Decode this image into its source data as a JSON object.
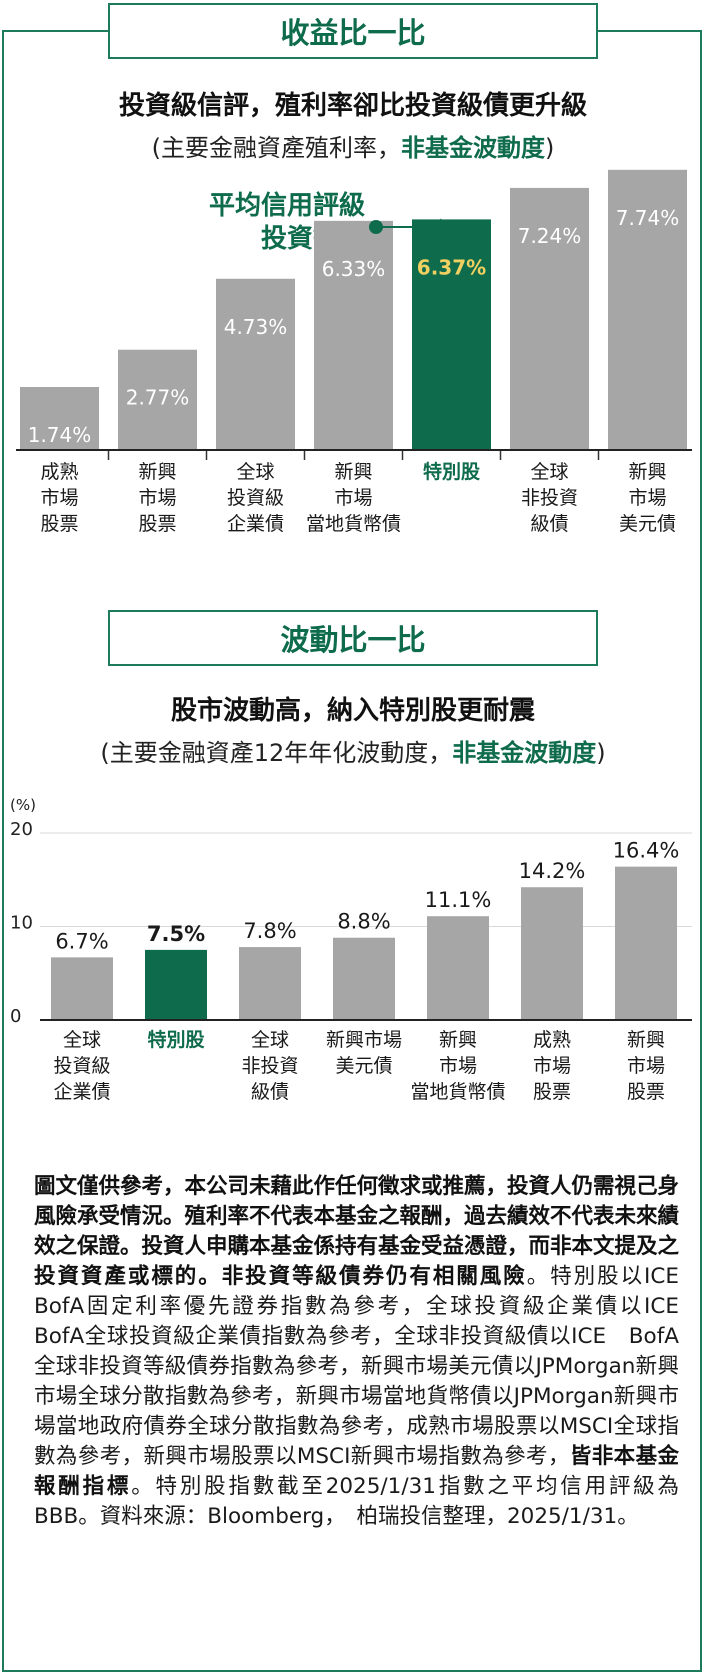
{
  "section1": {
    "header": "收益比一比",
    "headline": "投資級信評，殖利率卻比投資級債更升級",
    "subline_prefix": "(主要金融資產殖利率，",
    "subline_highlight": "非基金波動度",
    "subline_suffix": ")",
    "callout_line1": "平均信用評級",
    "callout_line2": "投資等級"
  },
  "section2": {
    "header": "波動比一比",
    "headline": "股市波動高，納入特別股更耐震",
    "subline_prefix": "(主要金融資產12年年化波動度，",
    "subline_highlight": "非基金波動度",
    "subline_suffix": ")"
  },
  "colors": {
    "accent": "#0e6b4c",
    "bar_gray": "#a6a6a6",
    "bar_highlight": "#0e6b4c",
    "highlight_value_text": "#f0d060"
  },
  "chart_data": [
    {
      "type": "bar",
      "title": "投資級信評，殖利率卻比投資級債更升級",
      "categories": [
        [
          "成熟",
          "市場",
          "股票"
        ],
        [
          "新興",
          "市場",
          "股票"
        ],
        [
          "全球",
          "投資級",
          "企業債"
        ],
        [
          "新興",
          "市場",
          "當地貨幣債"
        ],
        [
          "特別股"
        ],
        [
          "全球",
          "非投資",
          "級債"
        ],
        [
          "新興",
          "市場",
          "美元債"
        ]
      ],
      "values": [
        1.74,
        2.77,
        4.73,
        6.33,
        6.37,
        7.24,
        7.74
      ],
      "value_labels": [
        "1.74%",
        "2.77%",
        "4.73%",
        "6.33%",
        "6.37%",
        "7.24%",
        "7.74%"
      ],
      "highlight_index": 4,
      "ylim": [
        0,
        8.5
      ]
    },
    {
      "type": "bar",
      "title": "股市波動高，納入特別股更耐震",
      "unit_label": "(%)",
      "categories": [
        [
          "全球",
          "投資級",
          "企業債"
        ],
        [
          "特別股"
        ],
        [
          "全球",
          "非投資",
          "級債"
        ],
        [
          "新興市場",
          "美元債"
        ],
        [
          "新興",
          "市場",
          "當地貨幣債"
        ],
        [
          "成熟",
          "市場",
          "股票"
        ],
        [
          "新興",
          "市場",
          "股票"
        ]
      ],
      "values": [
        6.7,
        7.5,
        7.8,
        8.8,
        11.1,
        14.2,
        16.4
      ],
      "value_labels": [
        "6.7%",
        "7.5%",
        "7.8%",
        "8.8%",
        "11.1%",
        "14.2%",
        "16.4%"
      ],
      "highlight_index": 1,
      "yticks": [
        "0",
        "10",
        "20"
      ],
      "ylim": [
        0,
        20
      ],
      "grid": true
    }
  ],
  "disclaimer": {
    "bold1": "圖文僅供參考，本公司未藉此作任何徵求或推薦，投資人仍需視己身風險承受情況。殖利率不代表本基金之報酬，過去績效不代表未來績效之保證。投資人申購本基金係持有基金受益憑證，而非本文提及之投資資產或標的。非投資等級債券仍有相關風險",
    "normal1": "。特別股以ICE　BofA固定利率優先證券指數為參考，全球投資級企業債以ICE　BofA全球投資級企業債指數為參考，全球非投資級債以ICE　BofA全球非投資等級債券指數為參考，新興市場美元債以JPMorgan新興市場全球分散指數為參考，新興市場當地貨幣債以JPMorgan新興市場當地政府債券全球分散指數為參考，成熟市場股票以MSCI全球指數為參考，新興市場股票以MSCI新興市場指數為參考，",
    "bold2": "皆非本基金報酬指標",
    "normal2": "。特別股指數截至2025/1/31指數之平均信用評級為BBB。資料來源：Bloomberg，　柏瑞投信整理，2025/1/31。"
  }
}
